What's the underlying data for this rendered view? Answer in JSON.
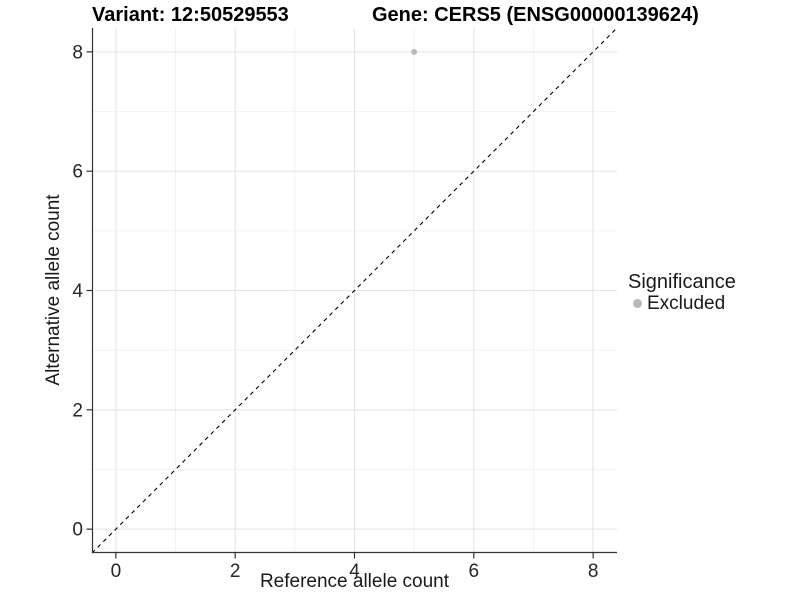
{
  "colors": {
    "background": "#ffffff",
    "grid_major": "#e5e5e5",
    "grid_minor": "#efefef",
    "axis_line": "#333333",
    "tick_mark": "#333333",
    "tick_label": "#262626",
    "axis_title": "#1a1a1a",
    "plot_title": "#000000",
    "point": "#b9b9b9",
    "identity_line": "#000000"
  },
  "chart_data": {
    "type": "scatter",
    "titles": {
      "left": "Variant: 12:50529553",
      "right": "Gene: CERS5 (ENSG00000139624)"
    },
    "xlabel": "Reference allele count",
    "ylabel": "Alternative allele count",
    "xlim": [
      -0.4,
      8.4
    ],
    "ylim": [
      -0.4,
      8.4
    ],
    "xticks": [
      0,
      2,
      4,
      6,
      8
    ],
    "yticks": [
      0,
      2,
      4,
      6,
      8
    ],
    "xminor": [
      1,
      3,
      5,
      7
    ],
    "yminor": [
      1,
      3,
      5,
      7
    ],
    "grid": "on",
    "identity_line": {
      "style": "dashed",
      "slope": 1,
      "intercept": 0,
      "color": "#000000"
    },
    "series": [
      {
        "name": "Excluded",
        "color": "#b9b9b9",
        "points": [
          {
            "x": 5,
            "y": 8
          }
        ]
      }
    ],
    "legend": {
      "title": "Significance",
      "position": "right",
      "items": [
        {
          "label": "Excluded",
          "color": "#b9b9b9"
        }
      ]
    }
  }
}
